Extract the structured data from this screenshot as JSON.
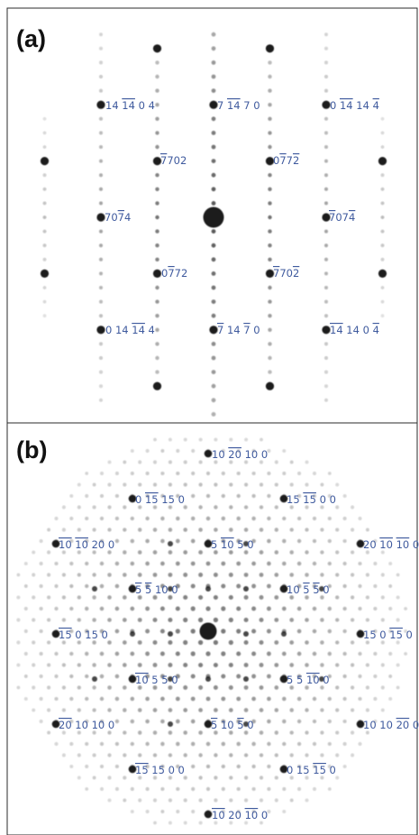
{
  "figure": {
    "frame_color": "#2b2b2b",
    "label_color": "#3f5a9e",
    "spot_color": "#1a1a1a"
  },
  "panels": [
    {
      "letter": "(a)",
      "lattice": "square",
      "labels": [
        {
          "parts": [
            {
              "t": "14 "
            },
            {
              "t": "14",
              "bar": true
            },
            {
              "t": " 0 4"
            }
          ]
        },
        {
          "parts": [
            {
              "t": "7 "
            },
            {
              "t": "14",
              "bar": true
            },
            {
              "t": " 7 0"
            }
          ]
        },
        {
          "parts": [
            {
              "t": "0 "
            },
            {
              "t": "14",
              "bar": true
            },
            {
              "t": " 14 "
            },
            {
              "t": "4",
              "bar": true
            }
          ]
        },
        {
          "parts": [
            {
              "t": "7",
              "bar": true
            },
            {
              "t": "702"
            }
          ]
        },
        {
          "parts": [
            {
              "t": "0"
            },
            {
              "t": "7",
              "bar": true
            },
            {
              "t": "7"
            },
            {
              "t": "2",
              "bar": true
            }
          ]
        },
        {
          "parts": [
            {
              "t": "70"
            },
            {
              "t": "7",
              "bar": true
            },
            {
              "t": "4"
            }
          ]
        },
        {
          "parts": [
            {
              "t": "7",
              "bar": true
            },
            {
              "t": "07"
            },
            {
              "t": "4",
              "bar": true
            }
          ]
        },
        {
          "parts": [
            {
              "t": "0"
            },
            {
              "t": "7",
              "bar": true
            },
            {
              "t": "72"
            }
          ]
        },
        {
          "parts": [
            {
              "t": "7",
              "bar": true
            },
            {
              "t": "70"
            },
            {
              "t": "2",
              "bar": true
            }
          ]
        },
        {
          "parts": [
            {
              "t": "0 14 "
            },
            {
              "t": "14",
              "bar": true
            },
            {
              "t": " 4"
            }
          ]
        },
        {
          "parts": [
            {
              "t": "7",
              "bar": true
            },
            {
              "t": " 14 "
            },
            {
              "t": "7",
              "bar": true
            },
            {
              "t": " 0"
            }
          ]
        },
        {
          "parts": [
            {
              "t": "14",
              "bar": true
            },
            {
              "t": " 14 0 "
            },
            {
              "t": "4",
              "bar": true
            }
          ]
        }
      ]
    },
    {
      "letter": "(b)",
      "lattice": "hexagonal",
      "labels": [
        {
          "parts": [
            {
              "t": "10 "
            },
            {
              "t": "20",
              "bar": true
            },
            {
              "t": " 10 0"
            }
          ]
        },
        {
          "parts": [
            {
              "t": "0 "
            },
            {
              "t": "15",
              "bar": true
            },
            {
              "t": " 15 0"
            }
          ]
        },
        {
          "parts": [
            {
              "t": "15 "
            },
            {
              "t": "15",
              "bar": true
            },
            {
              "t": " 0 0"
            }
          ]
        },
        {
          "parts": [
            {
              "t": "10",
              "bar": true
            },
            {
              "t": " "
            },
            {
              "t": "10",
              "bar": true
            },
            {
              "t": " 20 0"
            }
          ]
        },
        {
          "parts": [
            {
              "t": "5 "
            },
            {
              "t": "10",
              "bar": true
            },
            {
              "t": " 5 0"
            }
          ]
        },
        {
          "parts": [
            {
              "t": "20 "
            },
            {
              "t": "10",
              "bar": true
            },
            {
              "t": " "
            },
            {
              "t": "10",
              "bar": true
            },
            {
              "t": " 0"
            }
          ]
        },
        {
          "parts": [
            {
              "t": "5",
              "bar": true
            },
            {
              "t": " "
            },
            {
              "t": "5",
              "bar": true
            },
            {
              "t": " 10 0"
            }
          ]
        },
        {
          "parts": [
            {
              "t": "10 "
            },
            {
              "t": "5",
              "bar": true
            },
            {
              "t": " "
            },
            {
              "t": "5",
              "bar": true
            },
            {
              "t": " 0"
            }
          ]
        },
        {
          "parts": [
            {
              "t": "15",
              "bar": true
            },
            {
              "t": " 0 15 0"
            }
          ]
        },
        {
          "parts": [
            {
              "t": "15 0 "
            },
            {
              "t": "15",
              "bar": true
            },
            {
              "t": " 0"
            }
          ]
        },
        {
          "parts": [
            {
              "t": "10",
              "bar": true
            },
            {
              "t": " 5 5 0"
            }
          ]
        },
        {
          "parts": [
            {
              "t": "5 5 "
            },
            {
              "t": "10",
              "bar": true
            },
            {
              "t": " 0"
            }
          ]
        },
        {
          "parts": [
            {
              "t": "5",
              "bar": true
            },
            {
              "t": " 10 "
            },
            {
              "t": "5",
              "bar": true
            },
            {
              "t": " 0"
            }
          ]
        },
        {
          "parts": [
            {
              "t": "20",
              "bar": true
            },
            {
              "t": " 10 10 0"
            }
          ]
        },
        {
          "parts": [
            {
              "t": "10 10 "
            },
            {
              "t": "20",
              "bar": true
            },
            {
              "t": " 0"
            }
          ]
        },
        {
          "parts": [
            {
              "t": "15",
              "bar": true
            },
            {
              "t": " 15 0 0"
            }
          ]
        },
        {
          "parts": [
            {
              "t": "0 15 "
            },
            {
              "t": "15",
              "bar": true
            },
            {
              "t": " 0"
            }
          ]
        },
        {
          "parts": [
            {
              "t": "10",
              "bar": true
            },
            {
              "t": " 20 "
            },
            {
              "t": "10",
              "bar": true
            },
            {
              "t": " 0"
            }
          ]
        }
      ]
    }
  ]
}
